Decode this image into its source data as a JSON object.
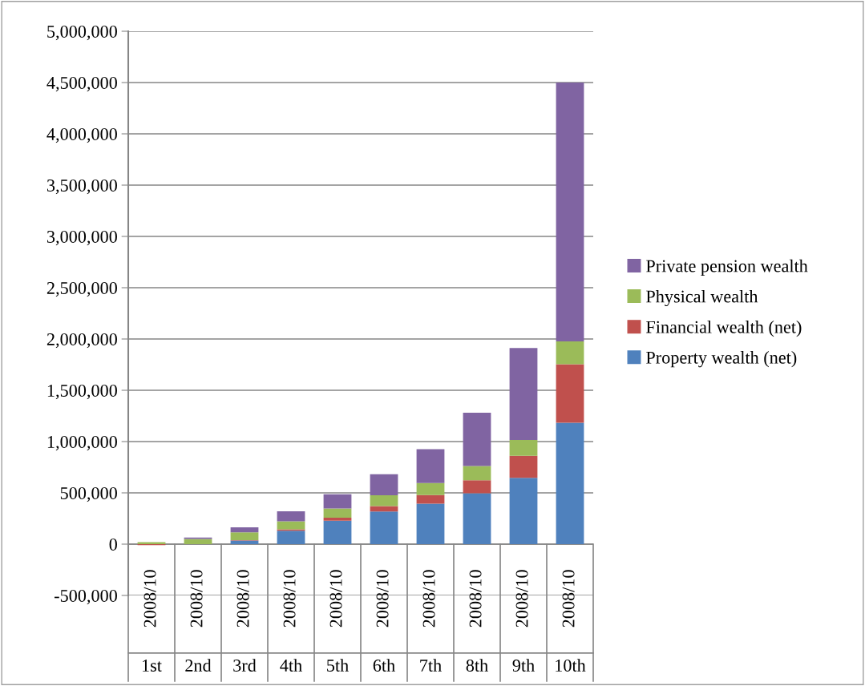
{
  "chart_data": {
    "type": "bar",
    "stacked": true,
    "categories": [
      "2008/10\n1st",
      "2008/10\n2nd",
      "2008/10\n3rd",
      "2008/10\n4th",
      "2008/10\n5th",
      "2008/10\n6th",
      "2008/10\n7th",
      "2008/10\n8th",
      "2008/10\n9th",
      "2008/10\n10th"
    ],
    "series": [
      {
        "name": "Property wealth (net)",
        "color": "#4f81bd",
        "values": [
          0,
          0,
          35000,
          130000,
          229000,
          318000,
          395000,
          497000,
          647000,
          1184000
        ]
      },
      {
        "name": "Financial wealth (net)",
        "color": "#c0504d",
        "values": [
          -10000,
          0,
          5000,
          15000,
          29000,
          53000,
          84000,
          127000,
          214000,
          569000
        ]
      },
      {
        "name": "Physical wealth",
        "color": "#9bbb59",
        "values": [
          20000,
          50000,
          75000,
          78000,
          89000,
          105000,
          116000,
          137000,
          155000,
          223000
        ]
      },
      {
        "name": "Private pension wealth",
        "color": "#8064a2",
        "values": [
          0,
          15000,
          50000,
          97000,
          140000,
          206000,
          331000,
          521000,
          897000,
          2524000
        ]
      }
    ],
    "ylim": [
      -500000,
      5000000
    ],
    "yticks": [
      {
        "value": -500000,
        "label": "-500,000"
      },
      {
        "value": 0,
        "label": "0"
      },
      {
        "value": 500000,
        "label": "500,000"
      },
      {
        "value": 1000000,
        "label": "1,000,000"
      },
      {
        "value": 1500000,
        "label": "1,500,000"
      },
      {
        "value": 2000000,
        "label": "2,000,000"
      },
      {
        "value": 2500000,
        "label": "2,500,000"
      },
      {
        "value": 3000000,
        "label": "3,000,000"
      },
      {
        "value": 3500000,
        "label": "3,500,000"
      },
      {
        "value": 4000000,
        "label": "4,000,000"
      },
      {
        "value": 4500000,
        "label": "4,500,000"
      },
      {
        "value": 5000000,
        "label": "5,000,000"
      }
    ],
    "grid": "y",
    "legend": "right"
  }
}
